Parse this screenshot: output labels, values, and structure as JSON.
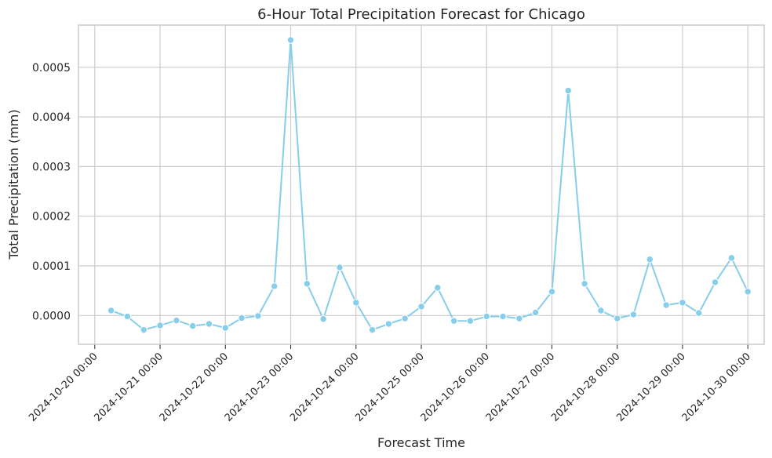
{
  "chart_data": {
    "type": "line",
    "title": "6-Hour Total Precipitation Forecast for Chicago",
    "xlabel": "Forecast Time",
    "ylabel": "Total Precipitation (mm)",
    "x_tick_labels": [
      "2024-10-20 00:00",
      "2024-10-21 00:00",
      "2024-10-22 00:00",
      "2024-10-23 00:00",
      "2024-10-24 00:00",
      "2024-10-25 00:00",
      "2024-10-26 00:00",
      "2024-10-27 00:00",
      "2024-10-28 00:00",
      "2024-10-29 00:00",
      "2024-10-30 00:00"
    ],
    "y_tick_labels": [
      "0.0000",
      "0.0001",
      "0.0002",
      "0.0003",
      "0.0004",
      "0.0005"
    ],
    "y_ticks": [
      0,
      0.0001,
      0.0002,
      0.0003,
      0.0004,
      0.0005
    ],
    "xlim": [
      "2024-10-19 18:00",
      "2024-10-30 06:00"
    ],
    "ylim": [
      -5.8e-05,
      0.000585
    ],
    "grid": true,
    "series_color": "#87ceeb",
    "x": [
      "2024-10-20 06:00",
      "2024-10-20 12:00",
      "2024-10-20 18:00",
      "2024-10-21 00:00",
      "2024-10-21 06:00",
      "2024-10-21 12:00",
      "2024-10-21 18:00",
      "2024-10-22 00:00",
      "2024-10-22 06:00",
      "2024-10-22 12:00",
      "2024-10-22 18:00",
      "2024-10-23 00:00",
      "2024-10-23 06:00",
      "2024-10-23 12:00",
      "2024-10-23 18:00",
      "2024-10-24 00:00",
      "2024-10-24 06:00",
      "2024-10-24 12:00",
      "2024-10-24 18:00",
      "2024-10-25 00:00",
      "2024-10-25 06:00",
      "2024-10-25 12:00",
      "2024-10-25 18:00",
      "2024-10-26 00:00",
      "2024-10-26 06:00",
      "2024-10-26 12:00",
      "2024-10-26 18:00",
      "2024-10-27 00:00",
      "2024-10-27 06:00",
      "2024-10-27 12:00",
      "2024-10-27 18:00",
      "2024-10-28 00:00",
      "2024-10-28 06:00",
      "2024-10-28 12:00",
      "2024-10-28 18:00",
      "2024-10-29 00:00",
      "2024-10-29 06:00",
      "2024-10-29 12:00",
      "2024-10-29 18:00",
      "2024-10-30 00:00"
    ],
    "values": [
      1e-05,
      -2e-06,
      -2.9e-05,
      -2e-05,
      -1e-05,
      -2.1e-05,
      -1.7e-05,
      -2.5e-05,
      -5e-06,
      -1e-06,
      5.9e-05,
      0.000555,
      6.4e-05,
      -7e-06,
      9.7e-05,
      2.6e-05,
      -2.9e-05,
      -1.7e-05,
      -6e-06,
      1.8e-05,
      5.6e-05,
      -1.1e-05,
      -1.1e-05,
      -2e-06,
      -2e-06,
      -6e-06,
      6e-06,
      4.8e-05,
      0.000453,
      6.4e-05,
      1e-05,
      -6e-06,
      2e-06,
      0.000113,
      2.1e-05,
      2.6e-05,
      5e-06,
      6.7e-05,
      0.000116,
      4.8e-05
    ]
  }
}
